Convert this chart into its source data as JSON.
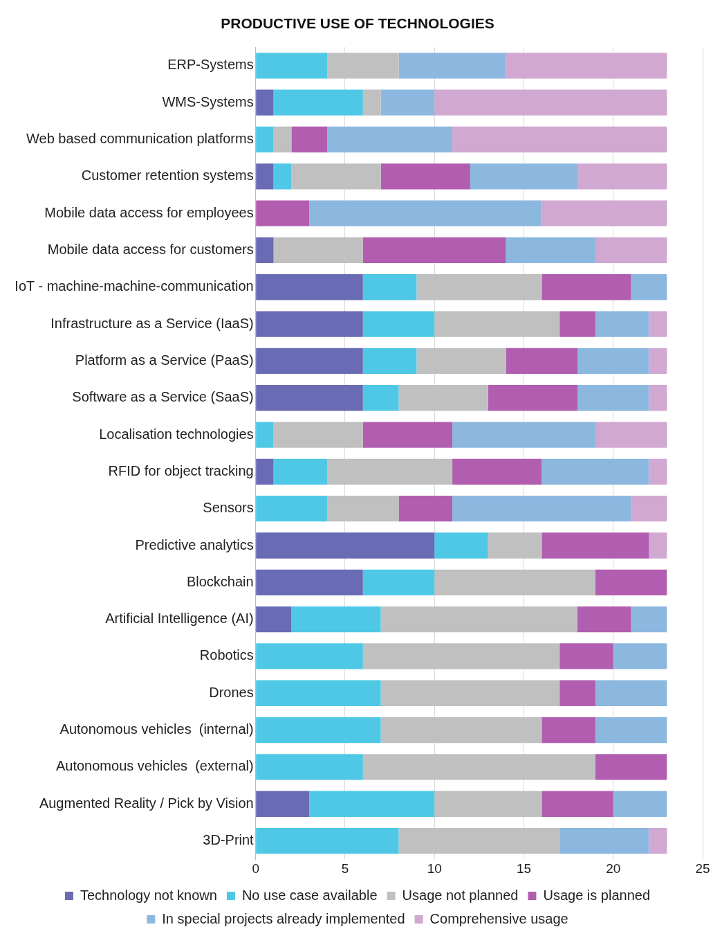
{
  "chart_data": {
    "type": "bar",
    "title": "PRODUCTIVE USE OF TECHNOLOGIES",
    "orientation": "horizontal",
    "stacked": true,
    "grid": "x",
    "legend": "bottom",
    "categories": [
      "ERP-Systems",
      "WMS-Systems",
      "Web based communication platforms",
      "Customer retention systems",
      "Mobile data access for employees",
      "Mobile data access for customers",
      "IoT - machine-machine-communication",
      "Infrastructure as a Service (IaaS)",
      "Platform as a Service (PaaS)",
      "Software as a Service (SaaS)",
      "Localisation technologies",
      "RFID for object tracking",
      "Sensors",
      "Predictive analytics",
      "Blockchain",
      "Artificial Intelligence (AI)",
      "Robotics",
      "Drones",
      "Autonomous vehicles  (internal)",
      "Autonomous vehicles  (external)",
      "Augmented Reality / Pick by Vision",
      "3D-Print"
    ],
    "xlim": [
      0,
      25
    ],
    "xticks": [
      0,
      5,
      10,
      15,
      20,
      25
    ],
    "series": [
      {
        "name": "Technology not known",
        "color": "#6a6bb5",
        "values": [
          0,
          1,
          0,
          1,
          0,
          1,
          6,
          6,
          6,
          6,
          0,
          1,
          0,
          10,
          6,
          2,
          0,
          0,
          0,
          0,
          3,
          0
        ]
      },
      {
        "name": "No use case available",
        "color": "#4fc8e6",
        "values": [
          4,
          5,
          1,
          1,
          0,
          0,
          3,
          4,
          3,
          2,
          1,
          3,
          4,
          3,
          4,
          5,
          6,
          7,
          7,
          6,
          7,
          8
        ]
      },
      {
        "name": "Usage not planned",
        "color": "#c0c0c0",
        "values": [
          4,
          1,
          1,
          5,
          0,
          5,
          7,
          7,
          5,
          5,
          5,
          7,
          4,
          3,
          9,
          11,
          11,
          10,
          9,
          13,
          6,
          9
        ]
      },
      {
        "name": "Usage is planned",
        "color": "#b25eb0",
        "values": [
          0,
          0,
          2,
          5,
          3,
          8,
          5,
          2,
          4,
          5,
          5,
          5,
          3,
          6,
          4,
          3,
          3,
          2,
          3,
          4,
          4,
          0
        ]
      },
      {
        "name": "In special projects already implemented",
        "color": "#8cb8e0",
        "values": [
          6,
          3,
          7,
          6,
          13,
          5,
          2,
          3,
          4,
          4,
          8,
          6,
          10,
          0,
          0,
          2,
          3,
          4,
          4,
          0,
          3,
          5
        ]
      },
      {
        "name": "Comprehensive usage",
        "color": "#d1a8d1",
        "values": [
          9,
          13,
          12,
          5,
          7,
          4,
          0,
          1,
          1,
          1,
          4,
          1,
          2,
          1,
          0,
          0,
          0,
          0,
          0,
          0,
          0,
          1
        ]
      }
    ]
  }
}
